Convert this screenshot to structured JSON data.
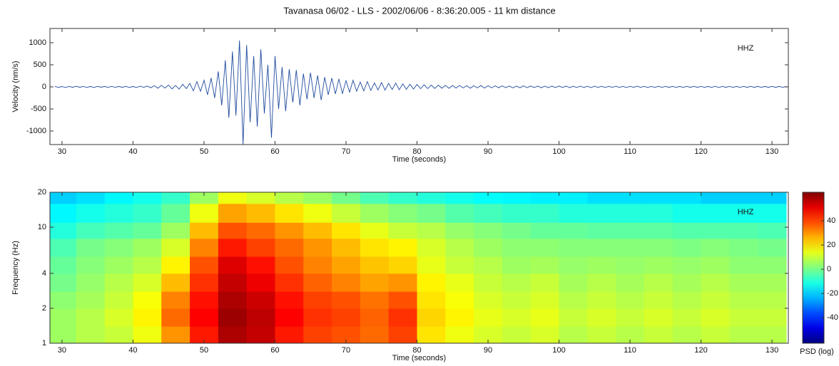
{
  "chart_data": [
    {
      "type": "line",
      "title": "Tavanasa 06/02 - LLS - 2002/06/06 - 8:36:20.005 - 11 km distance",
      "xlabel": "Time (seconds)",
      "ylabel": "Velocity (nm/s)",
      "annotation": "HHZ",
      "color": "#1f4b9e",
      "xlim": [
        28.3,
        132.3
      ],
      "xticks": [
        30,
        40,
        50,
        60,
        70,
        80,
        90,
        100,
        110,
        120,
        130
      ],
      "ylim": [
        -1306,
        1322
      ],
      "yticks": [
        -1000,
        -500,
        0,
        500,
        1000
      ],
      "x": [
        29,
        29.5,
        30,
        30.5,
        31,
        31.5,
        32,
        32.5,
        33,
        33.5,
        34,
        34.5,
        35,
        35.5,
        36,
        36.5,
        37,
        37.5,
        38,
        38.5,
        39,
        39.5,
        40,
        40.5,
        41,
        41.5,
        42,
        42.5,
        43,
        43.5,
        44,
        44.5,
        45,
        45.5,
        46,
        46.5,
        47,
        47.5,
        48,
        48.5,
        49,
        49.5,
        50,
        50.5,
        51,
        51.5,
        52,
        52.5,
        53,
        53.5,
        54,
        54.5,
        55,
        55.5,
        56,
        56.5,
        57,
        57.5,
        58,
        58.5,
        59,
        59.5,
        60,
        60.5,
        61,
        61.5,
        62,
        62.5,
        63,
        63.5,
        64,
        64.5,
        65,
        65.5,
        66,
        66.5,
        67,
        67.5,
        68,
        68.5,
        69,
        69.5,
        70,
        70.5,
        71,
        71.5,
        72,
        72.5,
        73,
        73.5,
        74,
        74.5,
        75,
        75.5,
        76,
        76.5,
        77,
        77.5,
        78,
        78.5,
        79,
        79.5,
        80,
        80.5,
        81,
        81.5,
        82,
        82.5,
        83,
        83.5,
        84,
        84.5,
        85,
        85.5,
        86,
        86.5,
        87,
        87.5,
        88,
        88.5,
        89,
        89.5,
        90,
        90.5,
        91,
        91.5,
        92,
        92.5,
        93,
        93.5,
        94,
        94.5,
        95,
        95.5,
        96,
        96.5,
        97,
        97.5,
        98,
        98.5,
        99,
        99.5,
        100,
        100.5,
        101,
        101.5,
        102,
        102.5,
        103,
        103.5,
        104,
        104.5,
        105,
        105.5,
        106,
        106.5,
        107,
        107.5,
        108,
        108.5,
        109,
        109.5,
        110,
        110.5,
        111,
        111.5,
        112,
        112.5,
        113,
        113.5,
        114,
        114.5,
        115,
        115.5,
        116,
        116.5,
        117,
        117.5,
        118,
        118.5,
        119,
        119.5,
        120,
        120.5,
        121,
        121.5,
        122,
        122.5,
        123,
        123.5,
        124,
        124.5,
        125,
        125.5,
        126,
        126.5,
        127,
        127.5,
        128,
        128.5,
        129,
        129.5,
        130,
        130.5,
        131,
        131.5,
        132
      ],
      "values": [
        10,
        -12,
        8,
        -15,
        12,
        -10,
        14,
        -9,
        11,
        -13,
        9,
        -14,
        12,
        -8,
        10,
        -11,
        13,
        -12,
        9,
        -10,
        12,
        -15,
        10,
        -14,
        16,
        -12,
        18,
        -20,
        25,
        -30,
        35,
        -28,
        40,
        -45,
        30,
        -50,
        60,
        -40,
        80,
        -90,
        120,
        -100,
        150,
        -180,
        200,
        -250,
        350,
        -420,
        600,
        -700,
        800,
        -650,
        1050,
        -1300,
        950,
        -800,
        700,
        -900,
        850,
        -600,
        500,
        -1150,
        700,
        -500,
        450,
        -550,
        400,
        -350,
        380,
        -420,
        300,
        -280,
        320,
        -250,
        260,
        -300,
        220,
        -180,
        200,
        -160,
        180,
        -150,
        140,
        -120,
        150,
        -100,
        110,
        -90,
        120,
        -80,
        90,
        -70,
        100,
        -75,
        80,
        -60,
        85,
        -65,
        70,
        -55,
        60,
        -50,
        55,
        -40,
        45,
        -38,
        40,
        -35,
        38,
        -30,
        35,
        -32,
        30,
        -28,
        32,
        -25,
        28,
        -30,
        25,
        -22,
        30,
        -28,
        25,
        -22,
        24,
        -20,
        22,
        -18,
        20,
        -22,
        18,
        -20,
        22,
        -18,
        20,
        -16,
        18,
        -20,
        16,
        -18,
        18,
        -16,
        20,
        -15,
        17,
        -18,
        15,
        -14,
        16,
        -15,
        14,
        -16,
        15,
        -13,
        14,
        -15,
        13,
        -12,
        14,
        -13,
        12,
        -14,
        13,
        -11,
        15,
        -12,
        12,
        -13,
        11,
        -12,
        13,
        -11,
        12,
        -10,
        11,
        -12,
        10,
        -11,
        12,
        -10,
        11,
        -10,
        12,
        -11,
        10,
        -12,
        13,
        -14,
        12,
        -10,
        11,
        -12,
        10,
        -11,
        12,
        -10,
        11,
        -10,
        9,
        -11,
        10,
        -9,
        11,
        -10,
        9,
        -10,
        8
      ]
    },
    {
      "type": "heatmap",
      "xlabel": "Time (seconds)",
      "ylabel": "Frequency (Hz)",
      "annotation": "HHZ",
      "colormap": "jet",
      "log_y": true,
      "xlim": [
        28.3,
        132.3
      ],
      "xticks": [
        30,
        40,
        50,
        60,
        70,
        80,
        90,
        100,
        110,
        120,
        130
      ],
      "ylim": [
        1,
        20
      ],
      "yticks": [
        1,
        2,
        4,
        10,
        20
      ],
      "x_edges": [
        28,
        32,
        36,
        40,
        44,
        48,
        52,
        56,
        60,
        64,
        68,
        72,
        76,
        80,
        84,
        88,
        92,
        96,
        100,
        104,
        108,
        112,
        116,
        120,
        124,
        128,
        132
      ],
      "y_edges": [
        1,
        1.4,
        2,
        2.8,
        4,
        5.6,
        8,
        11,
        16,
        20
      ],
      "values": [
        [
          5,
          8,
          10,
          15,
          30,
          45,
          58,
          55,
          45,
          40,
          38,
          35,
          40,
          20,
          15,
          12,
          10,
          12,
          8,
          10,
          8,
          10,
          8,
          10,
          8,
          8
        ],
        [
          5,
          8,
          12,
          18,
          35,
          48,
          60,
          56,
          48,
          42,
          40,
          36,
          42,
          22,
          18,
          14,
          12,
          14,
          10,
          12,
          10,
          12,
          10,
          12,
          10,
          10
        ],
        [
          3,
          6,
          10,
          16,
          32,
          46,
          58,
          54,
          46,
          40,
          38,
          34,
          38,
          20,
          16,
          12,
          10,
          12,
          8,
          10,
          8,
          10,
          8,
          10,
          8,
          8
        ],
        [
          0,
          4,
          8,
          12,
          25,
          42,
          55,
          50,
          42,
          36,
          32,
          28,
          30,
          18,
          14,
          10,
          8,
          10,
          6,
          8,
          6,
          8,
          6,
          8,
          6,
          6
        ],
        [
          -2,
          2,
          5,
          8,
          18,
          38,
          52,
          46,
          38,
          32,
          28,
          24,
          22,
          14,
          10,
          8,
          5,
          6,
          4,
          5,
          4,
          5,
          4,
          5,
          3,
          3
        ],
        [
          -5,
          0,
          2,
          5,
          12,
          32,
          45,
          40,
          35,
          30,
          25,
          20,
          18,
          12,
          8,
          5,
          3,
          3,
          2,
          2,
          2,
          2,
          1,
          2,
          1,
          0
        ],
        [
          -10,
          -6,
          -4,
          -2,
          5,
          25,
          38,
          35,
          30,
          25,
          20,
          14,
          10,
          8,
          4,
          2,
          0,
          -2,
          -2,
          -3,
          -3,
          -3,
          -4,
          -4,
          -4,
          -5
        ],
        [
          -15,
          -12,
          -10,
          -8,
          -2,
          15,
          28,
          25,
          20,
          15,
          10,
          5,
          2,
          0,
          -4,
          -6,
          -8,
          -8,
          -10,
          -10,
          -10,
          -10,
          -12,
          -12,
          -12,
          -12
        ],
        [
          -20,
          -18,
          -15,
          -12,
          -8,
          5,
          15,
          12,
          8,
          5,
          0,
          -5,
          -8,
          -10,
          -12,
          -14,
          -15,
          -16,
          -16,
          -18,
          -18,
          -18,
          -18,
          -20,
          -20,
          -20
        ]
      ],
      "clim": [
        -61,
        63.5
      ],
      "colorbar_ticks": [
        -40,
        -20,
        0,
        20,
        40
      ],
      "colorbar_label": "PSD (log)"
    }
  ]
}
